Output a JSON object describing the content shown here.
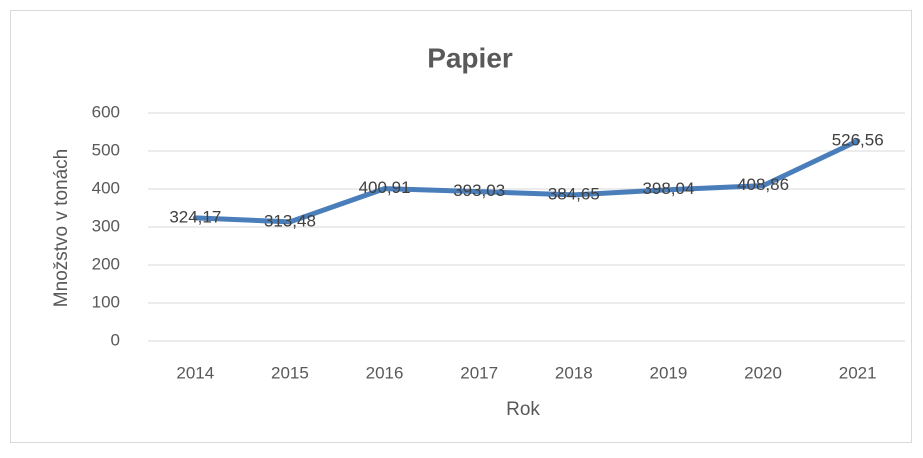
{
  "chart_data": {
    "type": "line",
    "title": "Papier",
    "x_label": "Rok",
    "y_label": "Množstvo v tonách",
    "categories": [
      "2014",
      "2015",
      "2016",
      "2017",
      "2018",
      "2019",
      "2020",
      "2021"
    ],
    "series": [
      {
        "name": "Papier",
        "color": "#4a7ebb",
        "values": [
          324.17,
          313.48,
          400.91,
          393.03,
          384.65,
          398.04,
          408.86,
          526.56
        ],
        "value_labels": [
          "324,17",
          "313,48",
          "400,91",
          "393,03",
          "384,65",
          "398,04",
          "408,86",
          "526,56"
        ]
      }
    ],
    "ylim": [
      0,
      600
    ],
    "yticks": [
      0,
      100,
      200,
      300,
      400,
      500,
      600
    ],
    "grid": true
  }
}
